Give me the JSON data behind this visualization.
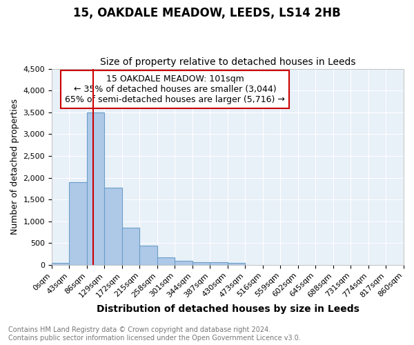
{
  "title": "15, OAKDALE MEADOW, LEEDS, LS14 2HB",
  "subtitle": "Size of property relative to detached houses in Leeds",
  "xlabel": "Distribution of detached houses by size in Leeds",
  "ylabel": "Number of detached properties",
  "bin_edges": [
    0,
    43,
    86,
    129,
    172,
    215,
    258,
    301,
    344,
    387,
    430,
    473,
    516,
    559,
    602,
    645,
    688,
    731,
    774,
    817,
    860
  ],
  "bar_heights": [
    50,
    1900,
    3500,
    1775,
    850,
    450,
    175,
    100,
    60,
    55,
    40,
    0,
    0,
    0,
    0,
    0,
    0,
    0,
    0,
    0
  ],
  "bar_color": "#aec8e8",
  "bar_edge_color": "#6a9fc8",
  "background_color": "#e8f0f8",
  "grid_color": "#ffffff",
  "property_size": 101,
  "red_line_color": "#cc0000",
  "annotation_box_color": "#ffffff",
  "annotation_box_edge": "#cc0000",
  "annotation_text_line1": "15 OAKDALE MEADOW: 101sqm",
  "annotation_text_line2": "← 35% of detached houses are smaller (3,044)",
  "annotation_text_line3": "65% of semi-detached houses are larger (5,716) →",
  "ylim": [
    0,
    4500
  ],
  "ytick_step": 500,
  "footer_line1": "Contains HM Land Registry data © Crown copyright and database right 2024.",
  "footer_line2": "Contains public sector information licensed under the Open Government Licence v3.0.",
  "title_fontsize": 12,
  "subtitle_fontsize": 10,
  "xlabel_fontsize": 10,
  "ylabel_fontsize": 9,
  "tick_fontsize": 8,
  "annotation_fontsize": 9,
  "footer_fontsize": 7
}
